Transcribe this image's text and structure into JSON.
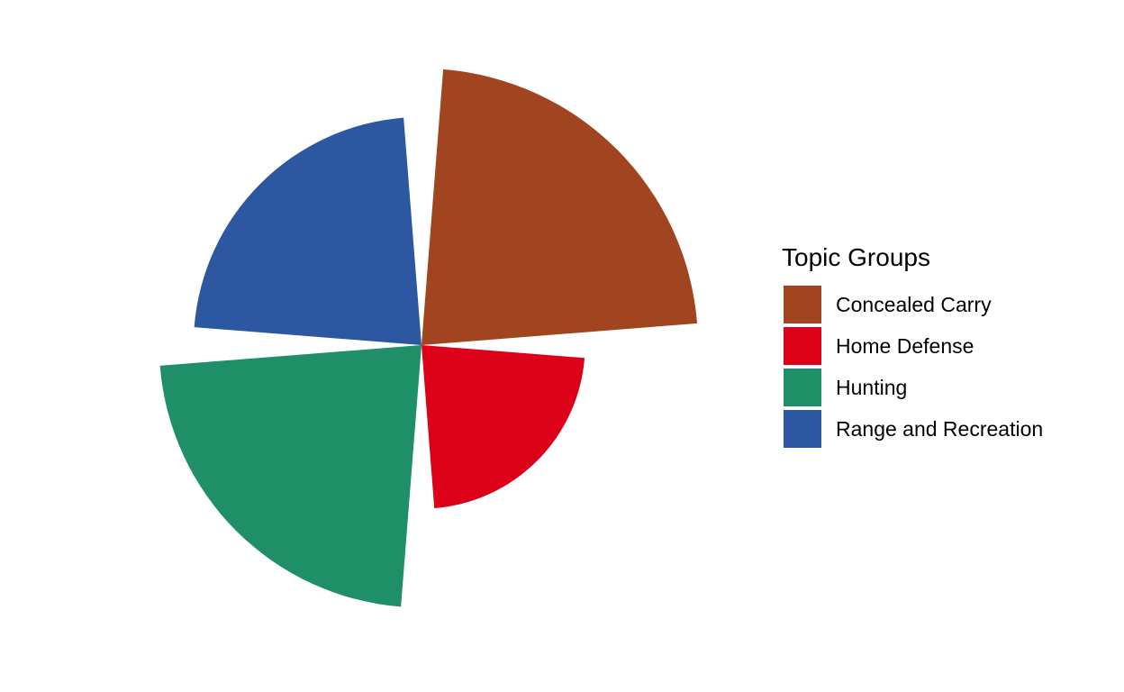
{
  "chart_data": {
    "type": "polar_area",
    "legend": {
      "title": "Topic Groups",
      "position": "right"
    },
    "grid": false,
    "max_value": 1,
    "slices": [
      {
        "name": "Concealed Carry",
        "value": 1.0,
        "color": "#A04520",
        "start_deg": 4.5,
        "end_deg": 85.5
      },
      {
        "name": "Home Defense",
        "value": 0.35,
        "color": "#DC0019",
        "start_deg": 94.5,
        "end_deg": 175.5
      },
      {
        "name": "Hunting",
        "value": 0.9,
        "color": "#1E8F67",
        "start_deg": 184.5,
        "end_deg": 265.5
      },
      {
        "name": "Range and Recreation",
        "value": 0.68,
        "color": "#2D58A1",
        "start_deg": 274.5,
        "end_deg": 355.5
      }
    ]
  }
}
